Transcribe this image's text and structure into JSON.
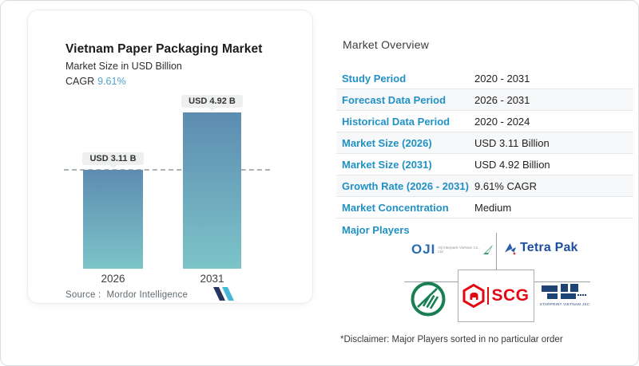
{
  "left_card": {
    "title": "Vietnam Paper Packaging Market",
    "subtitle": "Market Size in USD Billion",
    "cagr_label": "CAGR",
    "cagr_value": "9.61%",
    "source_label": "Source :",
    "source_name": "Mordor Intelligence"
  },
  "chart_data": {
    "type": "bar",
    "title": "Vietnam Paper Packaging Market",
    "ylabel": "Market Size in USD Billion",
    "categories": [
      "2026",
      "2031"
    ],
    "values": [
      3.11,
      4.92
    ],
    "value_labels": [
      "USD 3.11 B",
      "USD 4.92 B"
    ],
    "unit": "USD Billion",
    "cagr": "9.61%",
    "ylim": [
      0,
      4.92
    ],
    "dashed_reference_value": 3.11,
    "grid": "off",
    "bar_gradient_top": "#5d8cb1",
    "bar_gradient_bottom": "#7cc4c8"
  },
  "overview": {
    "heading": "Market Overview",
    "rows": [
      {
        "label": "Study Period",
        "value": "2020 - 2031"
      },
      {
        "label": "Forecast Data Period",
        "value": "2026 - 2031"
      },
      {
        "label": "Historical Data Period",
        "value": "2020 - 2024"
      },
      {
        "label": "Market Size (2026)",
        "value": "USD 3.11 Billion"
      },
      {
        "label": "Market Size (2031)",
        "value": "USD 4.92 Billion"
      },
      {
        "label": "Growth Rate (2026 - 2031)",
        "value": "9.61% CAGR"
      },
      {
        "label": "Market Concentration",
        "value": "Medium"
      }
    ],
    "major_players_label": "Major Players",
    "players": {
      "oji": {
        "text": "OJI",
        "subtext": "Oji Interpack Vietnam Co., Ltd"
      },
      "tetra_pak": {
        "text": "Tetra Pak"
      },
      "scg": {
        "text": "SCG"
      },
      "starprint": {
        "text": "STARPRINT VIETNAM JSC"
      }
    },
    "disclaimer": "*Disclaimer: Major Players sorted in no particular order"
  },
  "colors": {
    "label_blue": "#2191c4",
    "cagr_blue": "#4fa5cd",
    "scg_red": "#e30613",
    "tetra_pak_blue": "#1c4f9e",
    "oji_blue": "#2a6cb3",
    "oji_green": "#2ea06b",
    "starprint_navy": "#1d4474",
    "circle_logo_green": "#177f52"
  }
}
